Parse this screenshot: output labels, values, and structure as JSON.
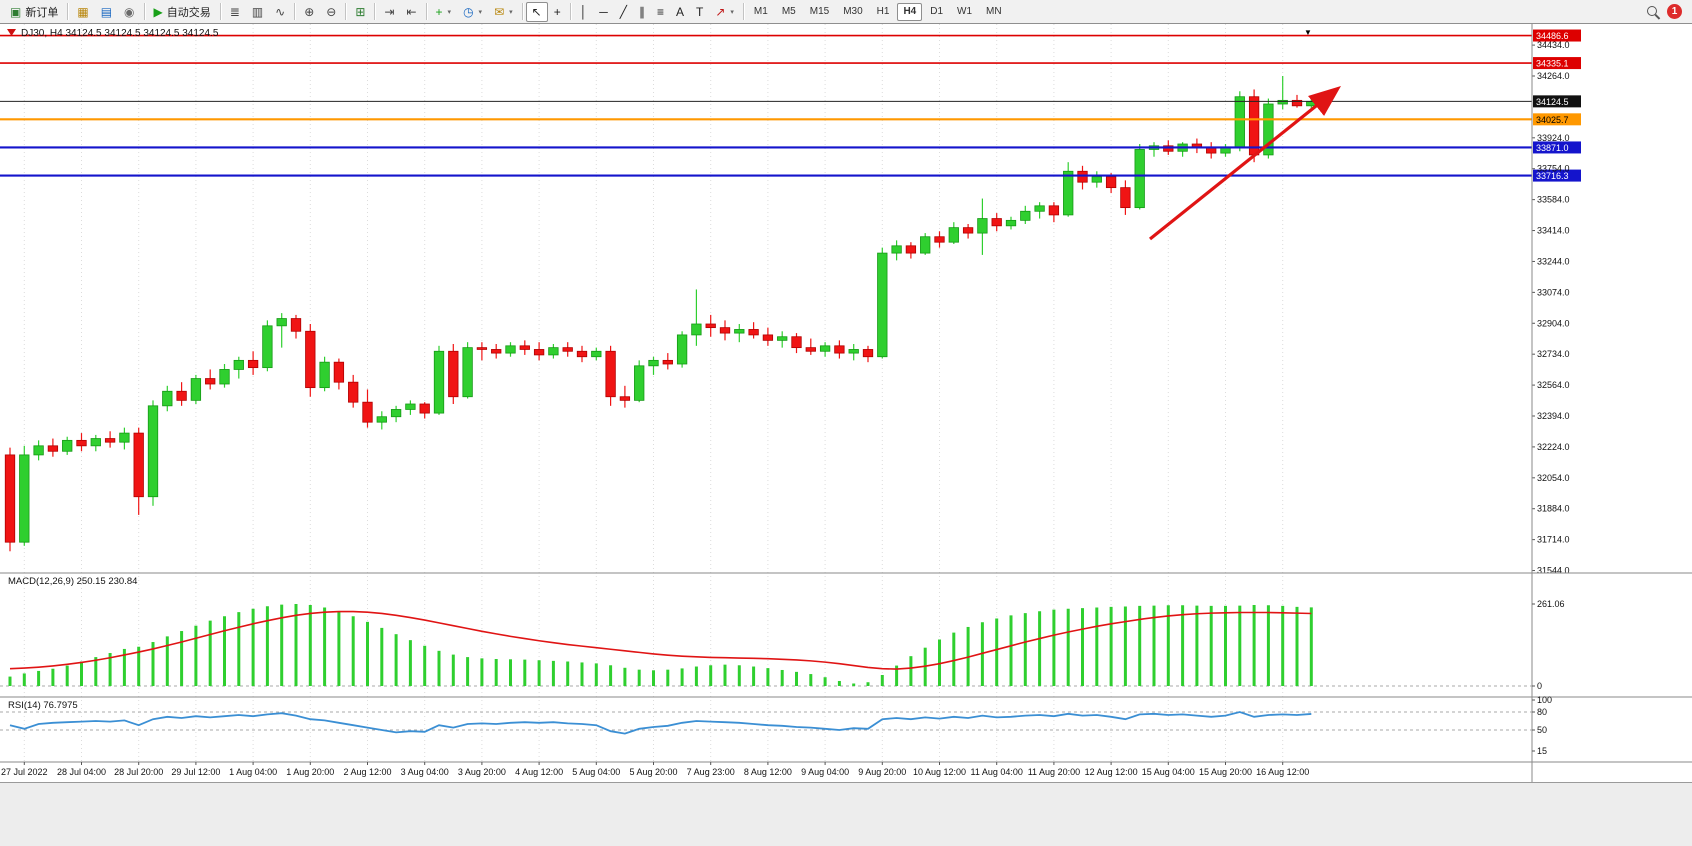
{
  "toolbar": {
    "groups": [
      {
        "kind": "labelbtn",
        "name": "new-order-button",
        "icon": "new-order-icon",
        "glyph": "▣",
        "glyph_color": "#2e7d32",
        "label": "新订单"
      },
      {
        "kind": "sep"
      },
      {
        "kind": "iconset",
        "items": [
          {
            "name": "market-watch-icon",
            "glyph": "▦",
            "color": "#b8860b"
          },
          {
            "name": "data-window-icon",
            "glyph": "▤",
            "color": "#1565c0"
          },
          {
            "name": "navigator-icon",
            "glyph": "◉",
            "color": "#6a6a6a"
          }
        ]
      },
      {
        "kind": "sep"
      },
      {
        "kind": "labelbtn",
        "name": "autotrading-button",
        "icon": "autotrading-icon",
        "glyph": "▶",
        "glyph_color": "#18a018",
        "label": "自动交易"
      },
      {
        "kind": "sep"
      },
      {
        "kind": "iconset",
        "items": [
          {
            "name": "bar-chart-icon",
            "glyph": "≣",
            "color": "#444444"
          },
          {
            "name": "candlestick-chart-icon",
            "glyph": "▥",
            "color": "#444444"
          },
          {
            "name": "line-chart-icon",
            "glyph": "∿",
            "color": "#444444"
          }
        ]
      },
      {
        "kind": "sep"
      },
      {
        "kind": "iconset",
        "items": [
          {
            "name": "zoom-in-icon",
            "glyph": "⊕",
            "color": "#444444"
          },
          {
            "name": "zoom-out-icon",
            "glyph": "⊖",
            "color": "#444444"
          }
        ]
      },
      {
        "kind": "sep"
      },
      {
        "kind": "iconset",
        "items": [
          {
            "name": "tile-windows-icon",
            "glyph": "⊞",
            "color": "#2e7d32"
          }
        ]
      },
      {
        "kind": "sep"
      },
      {
        "kind": "iconset",
        "items": [
          {
            "name": "auto-scroll-icon",
            "glyph": "⇥",
            "color": "#444444"
          },
          {
            "name": "chart-shift-icon",
            "glyph": "⇤",
            "color": "#444444"
          }
        ]
      },
      {
        "kind": "sep"
      },
      {
        "kind": "iconset",
        "items": [
          {
            "name": "indicators-icon",
            "glyph": "+",
            "color": "#18a018",
            "dropdown": true
          },
          {
            "name": "periods-icon",
            "glyph": "◷",
            "color": "#1565c0",
            "dropdown": true
          },
          {
            "name": "templates-icon",
            "glyph": "✉",
            "color": "#b8860b",
            "dropdown": true
          }
        ]
      },
      {
        "kind": "sep"
      },
      {
        "kind": "iconset",
        "items": [
          {
            "name": "cursor-icon",
            "glyph": "↖",
            "color": "#222222",
            "active": true
          },
          {
            "name": "crosshair-icon",
            "glyph": "+",
            "color": "#222222"
          }
        ]
      },
      {
        "kind": "sep"
      },
      {
        "kind": "iconset",
        "items": [
          {
            "name": "vertical-line-icon",
            "glyph": "│",
            "color": "#222222"
          },
          {
            "name": "horizontal-line-icon",
            "glyph": "─",
            "color": "#222222"
          },
          {
            "name": "trendline-icon",
            "glyph": "╱",
            "color": "#222222"
          },
          {
            "name": "channel-icon",
            "glyph": "∥",
            "color": "#222222"
          },
          {
            "name": "fibonacci-icon",
            "glyph": "≡",
            "color": "#222222"
          },
          {
            "name": "text-icon",
            "glyph": "A",
            "color": "#222222"
          },
          {
            "name": "label-icon",
            "glyph": "T",
            "color": "#222222"
          },
          {
            "name": "arrow-tools-icon",
            "glyph": "↗",
            "color": "#c01818",
            "dropdown": true
          }
        ]
      },
      {
        "kind": "sep"
      },
      {
        "kind": "timeframes",
        "items": [
          "M1",
          "M5",
          "M15",
          "M30",
          "H1",
          "H4",
          "D1",
          "W1",
          "MN"
        ],
        "active": "H4"
      }
    ],
    "notification_count": "1"
  },
  "chart_data": {
    "type": "candlestick",
    "symbol_period": "DJ30, H4",
    "ohlc_header": "34124.5 34124.5 34124.5 34124.5",
    "price_axis": {
      "labels": [
        "34434.0",
        "34264.0",
        "33924.0",
        "33754.0",
        "33584.0",
        "33414.0",
        "33244.0",
        "33074.0",
        "32904.0",
        "32734.0",
        "32564.0",
        "32394.0",
        "32224.0",
        "32054.0",
        "31884.0",
        "31714.0",
        "31544.0"
      ],
      "top_price": 34550,
      "points_per_pixel": 5.5
    },
    "levels": [
      {
        "label": "34486.6",
        "value": 34486.6,
        "color": "#dd0000",
        "text_color": "#ffffff",
        "width": 1.6
      },
      {
        "label": "34335.1",
        "value": 34335.1,
        "color": "#dd0000",
        "text_color": "#ffffff",
        "width": 1.6
      },
      {
        "label": "34025.7",
        "value": 34025.7,
        "color": "#ff9800",
        "text_color": "#000000",
        "width": 2.2
      },
      {
        "label": "33871.0",
        "value": 33871.0,
        "color": "#1414cc",
        "text_color": "#ffffff",
        "width": 2.2
      },
      {
        "label": "33716.3",
        "value": 33716.3,
        "color": "#1414cc",
        "text_color": "#ffffff",
        "width": 2.2
      }
    ],
    "current_price": {
      "label": "34124.5",
      "value": 34124.5
    },
    "time_labels": [
      "27 Jul 2022",
      "28 Jul 04:00",
      "28 Jul 20:00",
      "29 Jul 12:00",
      "1 Aug 04:00",
      "1 Aug 20:00",
      "2 Aug 12:00",
      "3 Aug 04:00",
      "3 Aug 20:00",
      "4 Aug 12:00",
      "5 Aug 04:00",
      "5 Aug 20:00",
      "7 Aug 23:00",
      "8 Aug 12:00",
      "9 Aug 04:00",
      "9 Aug 20:00",
      "10 Aug 12:00",
      "11 Aug 04:00",
      "11 Aug 20:00",
      "12 Aug 12:00",
      "15 Aug 04:00",
      "15 Aug 20:00",
      "16 Aug 12:00"
    ],
    "candles": [
      [
        32180,
        32220,
        31650,
        31700
      ],
      [
        31700,
        32230,
        31680,
        32180
      ],
      [
        32180,
        32260,
        32150,
        32230
      ],
      [
        32230,
        32270,
        32170,
        32200
      ],
      [
        32200,
        32280,
        32180,
        32260
      ],
      [
        32260,
        32300,
        32200,
        32230
      ],
      [
        32230,
        32290,
        32200,
        32270
      ],
      [
        32270,
        32310,
        32220,
        32250
      ],
      [
        32250,
        32330,
        32210,
        32300
      ],
      [
        32300,
        32330,
        31850,
        31950
      ],
      [
        31950,
        32480,
        31900,
        32450
      ],
      [
        32450,
        32560,
        32420,
        32530
      ],
      [
        32530,
        32580,
        32450,
        32480
      ],
      [
        32480,
        32620,
        32460,
        32600
      ],
      [
        32600,
        32650,
        32540,
        32570
      ],
      [
        32570,
        32680,
        32550,
        32650
      ],
      [
        32650,
        32720,
        32600,
        32700
      ],
      [
        32700,
        32750,
        32620,
        32660
      ],
      [
        32660,
        32920,
        32640,
        32890
      ],
      [
        32890,
        32960,
        32770,
        32930
      ],
      [
        32930,
        32950,
        32820,
        32860
      ],
      [
        32860,
        32900,
        32500,
        32550
      ],
      [
        32550,
        32720,
        32530,
        32690
      ],
      [
        32690,
        32710,
        32540,
        32580
      ],
      [
        32580,
        32620,
        32440,
        32470
      ],
      [
        32470,
        32540,
        32330,
        32360
      ],
      [
        32360,
        32420,
        32320,
        32390
      ],
      [
        32390,
        32450,
        32360,
        32430
      ],
      [
        32430,
        32480,
        32400,
        32460
      ],
      [
        32460,
        32470,
        32380,
        32410
      ],
      [
        32410,
        32780,
        32400,
        32750
      ],
      [
        32750,
        32790,
        32460,
        32500
      ],
      [
        32500,
        32800,
        32490,
        32770
      ],
      [
        32770,
        32800,
        32700,
        32760
      ],
      [
        32760,
        32790,
        32710,
        32740
      ],
      [
        32740,
        32800,
        32720,
        32780
      ],
      [
        32780,
        32810,
        32730,
        32760
      ],
      [
        32760,
        32800,
        32700,
        32730
      ],
      [
        32730,
        32790,
        32710,
        32770
      ],
      [
        32770,
        32800,
        32720,
        32750
      ],
      [
        32750,
        32780,
        32690,
        32720
      ],
      [
        32720,
        32770,
        32700,
        32750
      ],
      [
        32750,
        32780,
        32450,
        32500
      ],
      [
        32500,
        32560,
        32440,
        32480
      ],
      [
        32480,
        32700,
        32470,
        32670
      ],
      [
        32670,
        32720,
        32620,
        32700
      ],
      [
        32700,
        32740,
        32650,
        32680
      ],
      [
        32680,
        32860,
        32660,
        32840
      ],
      [
        32840,
        33090,
        32780,
        32900
      ],
      [
        32900,
        32950,
        32830,
        32880
      ],
      [
        32880,
        32920,
        32810,
        32850
      ],
      [
        32850,
        32900,
        32800,
        32870
      ],
      [
        32870,
        32910,
        32820,
        32840
      ],
      [
        32840,
        32880,
        32780,
        32810
      ],
      [
        32810,
        32860,
        32770,
        32830
      ],
      [
        32830,
        32850,
        32740,
        32770
      ],
      [
        32770,
        32820,
        32730,
        32750
      ],
      [
        32750,
        32800,
        32720,
        32780
      ],
      [
        32780,
        32810,
        32710,
        32740
      ],
      [
        32740,
        32790,
        32700,
        32760
      ],
      [
        32760,
        32780,
        32690,
        32720
      ],
      [
        32720,
        33320,
        32710,
        33290
      ],
      [
        33290,
        33360,
        33250,
        33330
      ],
      [
        33330,
        33350,
        33260,
        33290
      ],
      [
        33290,
        33400,
        33280,
        33380
      ],
      [
        33380,
        33410,
        33320,
        33350
      ],
      [
        33350,
        33460,
        33340,
        33430
      ],
      [
        33430,
        33450,
        33370,
        33400
      ],
      [
        33400,
        33590,
        33280,
        33480
      ],
      [
        33480,
        33510,
        33410,
        33440
      ],
      [
        33440,
        33490,
        33420,
        33470
      ],
      [
        33470,
        33550,
        33450,
        33520
      ],
      [
        33520,
        33570,
        33480,
        33550
      ],
      [
        33550,
        33570,
        33460,
        33500
      ],
      [
        33500,
        33790,
        33490,
        33740
      ],
      [
        33740,
        33770,
        33640,
        33680
      ],
      [
        33680,
        33740,
        33650,
        33710
      ],
      [
        33710,
        33730,
        33620,
        33650
      ],
      [
        33650,
        33690,
        33500,
        33540
      ],
      [
        33540,
        33890,
        33530,
        33860
      ],
      [
        33860,
        33900,
        33820,
        33880
      ],
      [
        33880,
        33910,
        33830,
        33850
      ],
      [
        33850,
        33900,
        33820,
        33890
      ],
      [
        33890,
        33920,
        33840,
        33870
      ],
      [
        33870,
        33900,
        33810,
        33840
      ],
      [
        33840,
        33890,
        33820,
        33870
      ],
      [
        33870,
        34180,
        33850,
        34150
      ],
      [
        34150,
        34190,
        33790,
        33830
      ],
      [
        33830,
        34140,
        33810,
        34110
      ],
      [
        34110,
        34264,
        34080,
        34130
      ],
      [
        34130,
        34160,
        34090,
        34100
      ],
      [
        34100,
        34135,
        34085,
        34124.5
      ]
    ],
    "macd": {
      "label": "MACD(12,26,9) 250.15 230.84",
      "axis_labels": [
        "261.06",
        "0"
      ],
      "axis_max": 261.06,
      "histogram": [
        30,
        40,
        48,
        55,
        65,
        78,
        92,
        105,
        118,
        125,
        140,
        158,
        175,
        192,
        208,
        222,
        235,
        246,
        254,
        259,
        261,
        258,
        250,
        238,
        222,
        204,
        185,
        165,
        146,
        128,
        112,
        100,
        92,
        88,
        86,
        85,
        84,
        82,
        80,
        78,
        75,
        72,
        66,
        58,
        52,
        50,
        52,
        56,
        62,
        66,
        68,
        66,
        62,
        57,
        51,
        45,
        38,
        28,
        16,
        8,
        12,
        35,
        65,
        95,
        122,
        148,
        170,
        188,
        203,
        215,
        225,
        232,
        238,
        243,
        246,
        248,
        250,
        252,
        253,
        255,
        256,
        257,
        257,
        256,
        255,
        255,
        256,
        258,
        257,
        255,
        252,
        250.15
      ],
      "signal": [
        55,
        57,
        60,
        64,
        69,
        75,
        82,
        90,
        99,
        108,
        118,
        129,
        140,
        152,
        164,
        176,
        187,
        198,
        208,
        217,
        225,
        231,
        235,
        237,
        237,
        235,
        231,
        225,
        218,
        210,
        201,
        192,
        183,
        174,
        166,
        158,
        151,
        144,
        138,
        132,
        127,
        122,
        117,
        112,
        107,
        102,
        98,
        95,
        93,
        91,
        90,
        89,
        88,
        87,
        85,
        83,
        80,
        76,
        71,
        65,
        59,
        55,
        54,
        57,
        63,
        71,
        81,
        92,
        104,
        116,
        128,
        140,
        151,
        162,
        172,
        181,
        190,
        198,
        205,
        212,
        218,
        223,
        227,
        230,
        232,
        233,
        234,
        234,
        234,
        233,
        232,
        230.84
      ]
    },
    "rsi": {
      "label": "RSI(14) 76.7975",
      "axis_labels": [
        "100",
        "80",
        "50",
        "15"
      ],
      "levels": [
        80,
        50
      ],
      "values": [
        58,
        52,
        60,
        62,
        63,
        64,
        65,
        64,
        66,
        58,
        68,
        72,
        70,
        73,
        71,
        73,
        75,
        73,
        76,
        78,
        74,
        68,
        66,
        62,
        58,
        54,
        50,
        46,
        48,
        47,
        58,
        54,
        60,
        61,
        60,
        62,
        63,
        62,
        63,
        61,
        60,
        58,
        48,
        44,
        52,
        55,
        57,
        62,
        65,
        64,
        63,
        62,
        60,
        58,
        57,
        55,
        54,
        52,
        50,
        53,
        52,
        68,
        70,
        68,
        71,
        69,
        72,
        70,
        74,
        71,
        72,
        74,
        75,
        73,
        77,
        74,
        75,
        72,
        68,
        76,
        77,
        75,
        76,
        74,
        72,
        74,
        80,
        72,
        75,
        76,
        75,
        76.8
      ]
    },
    "annotation_arrow": {
      "color": "#e01414"
    }
  }
}
